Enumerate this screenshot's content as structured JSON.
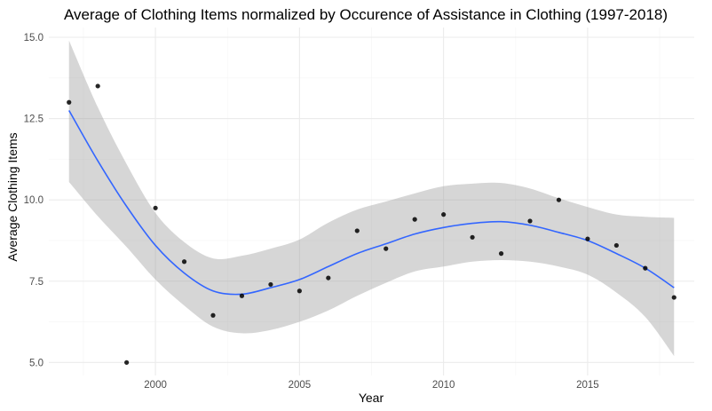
{
  "chart_data": {
    "type": "scatter",
    "title": "Average of Clothing Items normalized by Occurence of Assistance in Clothing (1997-2018)",
    "xlabel": "Year",
    "ylabel": "Average Clothing Items",
    "xlim": [
      1996.3,
      2018.7
    ],
    "ylim": [
      4.6,
      15.3
    ],
    "x_ticks": [
      2000,
      2005,
      2010,
      2015
    ],
    "y_ticks": [
      5.0,
      7.5,
      10.0,
      12.5,
      15.0
    ],
    "x_tick_labels": [
      "2000",
      "2005",
      "2010",
      "2015"
    ],
    "y_tick_labels": [
      "5.0",
      "7.5",
      "10.0",
      "12.5",
      "15.0"
    ],
    "grid": true,
    "legend": "none",
    "points": {
      "x": [
        1997,
        1998,
        1999,
        2000,
        2001,
        2002,
        2003,
        2004,
        2005,
        2006,
        2007,
        2008,
        2009,
        2010,
        2011,
        2012,
        2013,
        2014,
        2015,
        2016,
        2017,
        2018
      ],
      "y": [
        13.0,
        13.5,
        5.0,
        9.75,
        8.1,
        6.45,
        7.05,
        7.4,
        7.2,
        7.6,
        9.05,
        8.5,
        9.4,
        9.55,
        8.85,
        8.35,
        9.35,
        10.0,
        8.8,
        8.6,
        7.9,
        7.0
      ],
      "color": "#000000"
    },
    "smooth": {
      "method": "loess",
      "color": "#3366ff",
      "band_color": "#999999",
      "x": [
        1997,
        1998,
        1999,
        2000,
        2001,
        2002,
        2003,
        2004,
        2005,
        2006,
        2007,
        2008,
        2009,
        2010,
        2011,
        2012,
        2013,
        2014,
        2015,
        2016,
        2017,
        2018
      ],
      "fit": [
        12.75,
        11.2,
        9.8,
        8.6,
        7.75,
        7.2,
        7.1,
        7.3,
        7.55,
        7.95,
        8.35,
        8.65,
        8.95,
        9.15,
        9.28,
        9.33,
        9.22,
        9.0,
        8.75,
        8.35,
        7.9,
        7.3
      ],
      "lower": [
        10.55,
        9.5,
        8.55,
        7.55,
        6.75,
        6.1,
        5.9,
        6.0,
        6.25,
        6.6,
        7.05,
        7.45,
        7.8,
        7.95,
        8.1,
        8.15,
        8.1,
        7.95,
        7.7,
        7.15,
        6.4,
        5.2
      ],
      "upper": [
        14.9,
        12.85,
        11.1,
        9.6,
        8.7,
        8.2,
        8.28,
        8.5,
        8.78,
        9.3,
        9.7,
        9.95,
        10.2,
        10.42,
        10.5,
        10.52,
        10.35,
        10.05,
        9.78,
        9.55,
        9.48,
        9.45
      ]
    }
  }
}
